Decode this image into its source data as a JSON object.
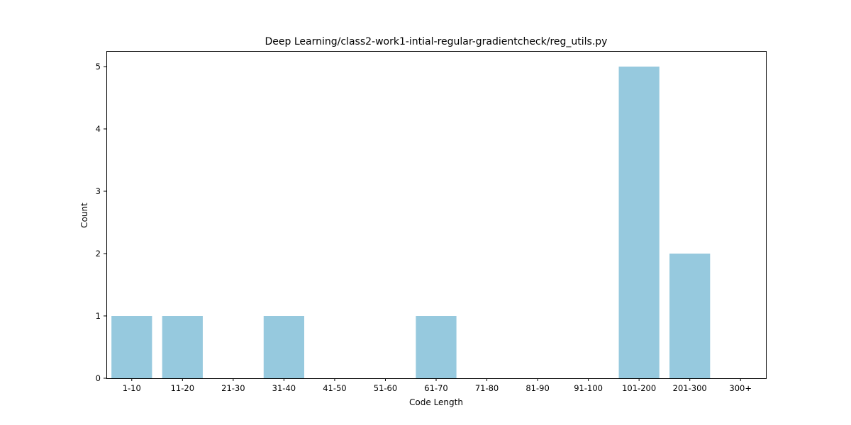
{
  "chart_data": {
    "type": "bar",
    "title": "Deep Learning/class2-work1-intial-regular-gradientcheck/reg_utils.py",
    "xlabel": "Code Length",
    "ylabel": "Count",
    "categories": [
      "1-10",
      "11-20",
      "21-30",
      "31-40",
      "41-50",
      "51-60",
      "61-70",
      "71-80",
      "81-90",
      "91-100",
      "101-200",
      "201-300",
      "300+"
    ],
    "values": [
      1,
      1,
      0,
      1,
      0,
      0,
      1,
      0,
      0,
      0,
      5,
      2,
      0
    ],
    "yticks": [
      0,
      1,
      2,
      3,
      4,
      5
    ],
    "ylim": [
      0,
      5.25
    ],
    "bar_color": "#96c9de",
    "grid": false,
    "legend": "none"
  }
}
